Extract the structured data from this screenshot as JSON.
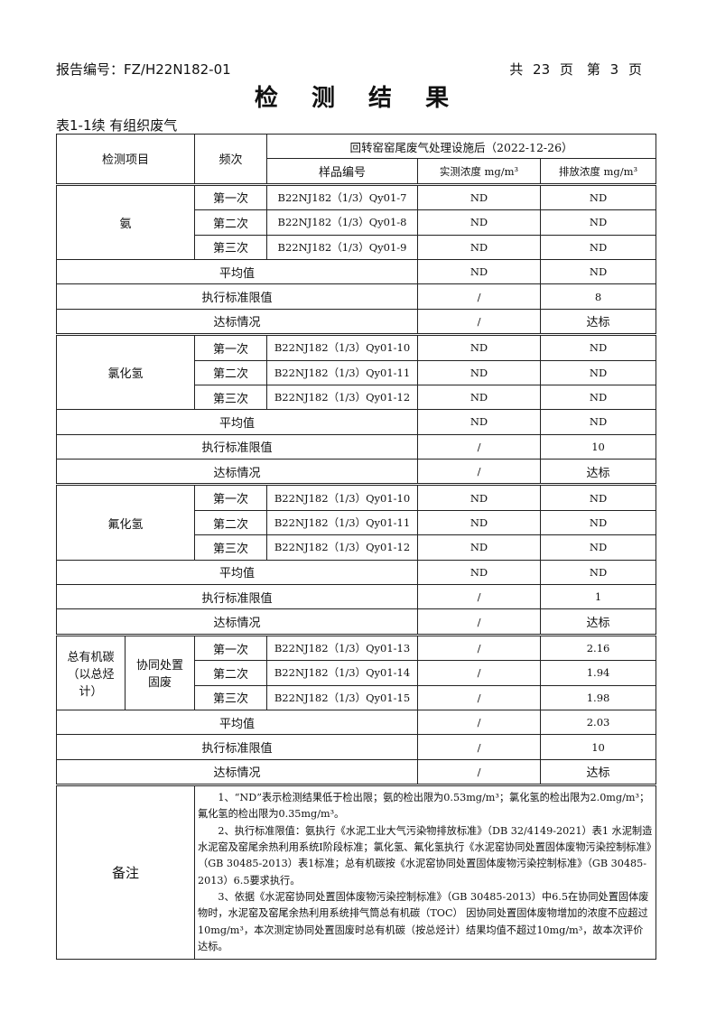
{
  "header": {
    "report_no": "报告编号：FZ/H22N182-01",
    "pages": "共 23 页　第 3 页"
  },
  "title": "检 测 结 果",
  "caption": "表1-1续 有组织废气",
  "table": {
    "col_item": "检测项目",
    "col_freq": "频次",
    "location": "回转窑窑尾废气处理设施后（2022-12-26）",
    "col_sample": "样品编号",
    "col_measured": "实测浓度 mg/m³",
    "col_emission": "排放浓度 mg/m³",
    "groups": [
      {
        "item": "氨",
        "rows": [
          [
            "第一次",
            "B22NJ182（1/3）Qy01-7",
            "ND",
            "ND"
          ],
          [
            "第二次",
            "B22NJ182（1/3）Qy01-8",
            "ND",
            "ND"
          ],
          [
            "第三次",
            "B22NJ182（1/3）Qy01-9",
            "ND",
            "ND"
          ]
        ],
        "avg": [
          "平均值",
          "ND",
          "ND"
        ],
        "limit": [
          "执行标准限值",
          "/",
          "8"
        ],
        "status": [
          "达标情况",
          "/",
          "达标"
        ]
      },
      {
        "item": "氯化氢",
        "rows": [
          [
            "第一次",
            "B22NJ182（1/3）Qy01-10",
            "ND",
            "ND"
          ],
          [
            "第二次",
            "B22NJ182（1/3）Qy01-11",
            "ND",
            "ND"
          ],
          [
            "第三次",
            "B22NJ182（1/3）Qy01-12",
            "ND",
            "ND"
          ]
        ],
        "avg": [
          "平均值",
          "ND",
          "ND"
        ],
        "limit": [
          "执行标准限值",
          "/",
          "10"
        ],
        "status": [
          "达标情况",
          "/",
          "达标"
        ]
      },
      {
        "item": "氟化氢",
        "rows": [
          [
            "第一次",
            "B22NJ182（1/3）Qy01-10",
            "ND",
            "ND"
          ],
          [
            "第二次",
            "B22NJ182（1/3）Qy01-11",
            "ND",
            "ND"
          ],
          [
            "第三次",
            "B22NJ182（1/3）Qy01-12",
            "ND",
            "ND"
          ]
        ],
        "avg": [
          "平均值",
          "ND",
          "ND"
        ],
        "limit": [
          "执行标准限值",
          "/",
          "1"
        ],
        "status": [
          "达标情况",
          "/",
          "达标"
        ]
      },
      {
        "item": "总有机碳（以总烃计）",
        "sub": "协同处置固废",
        "rows": [
          [
            "第一次",
            "B22NJ182（1/3）Qy01-13",
            "/",
            "2.16"
          ],
          [
            "第二次",
            "B22NJ182（1/3）Qy01-14",
            "/",
            "1.94"
          ],
          [
            "第三次",
            "B22NJ182（1/3）Qy01-15",
            "/",
            "1.98"
          ]
        ],
        "avg": [
          "平均值",
          "/",
          "2.03"
        ],
        "limit": [
          "执行标准限值",
          "/",
          "10"
        ],
        "status": [
          "达标情况",
          "/",
          "达标"
        ]
      }
    ],
    "notes_label": "备注",
    "notes": [
      "1、“ND”表示检测结果低于检出限；氨的检出限为0.53mg/m³；氯化氢的检出限为2.0mg/m³；氟化氢的检出限为0.35mg/m³。",
      "2、执行标准限值：氨执行《水泥工业大气污染物排放标准》（DB 32/4149-2021）表1 水泥制造 水泥窑及窑尾余热利用系统Ⅰ阶段标准；氯化氢、氟化氢执行《水泥窑协同处置固体废物污染控制标准》（GB 30485-2013）表1标准；总有机碳按《水泥窑协同处置固体废物污染控制标准》（GB 30485-2013）6.5要求执行。",
      "3、依据《水泥窑协同处置固体废物污染控制标准》（GB 30485-2013）中6.5在协同处置固体废物时，水泥窑及窑尾余热利用系统排气筒总有机碳（TOC） 因协同处置固体废物增加的浓度不应超过10mg/m³，本次测定协同处置固废时总有机碳（按总烃计）结果均值不超过10mg/m³，故本次评价达标。"
    ]
  }
}
